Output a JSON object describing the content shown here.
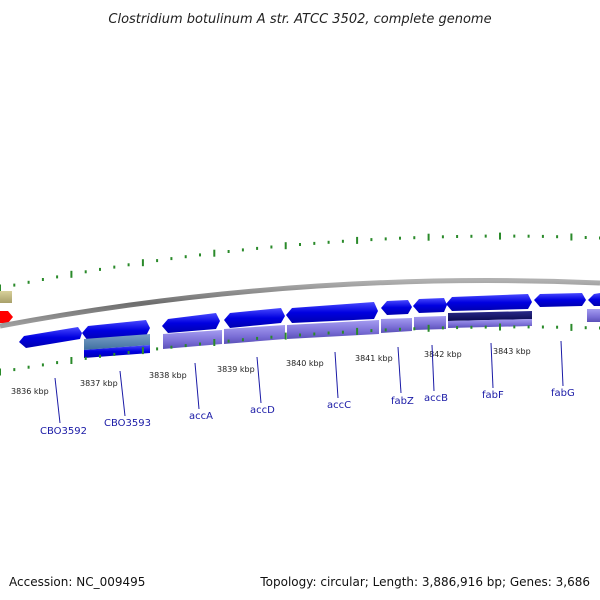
{
  "title": "Clostridium botulinum A str. ATCC 3502, complete genome",
  "footer": {
    "accession": "Accession: NC_009495",
    "summary": "Topology: circular; Length: 3,886,916 bp; Genes: 3,686"
  },
  "scale_labels": [
    "3836 kbp",
    "3837 kbp",
    "3838 kbp",
    "3839 kbp",
    "3840 kbp",
    "3841 kbp",
    "3842 kbp",
    "3843 kbp"
  ],
  "gene_labels": [
    "CBO3592",
    "CBO3593",
    "accA",
    "accD",
    "accC",
    "fabZ",
    "accB",
    "fabF",
    "fabG"
  ],
  "colors": {
    "backbone": "#8a8a8a",
    "gene": "#0a0ae6",
    "cds": "#7b6fd6",
    "tick": "#2a8a2a",
    "label_line": "#1a1aa6",
    "other_feature": "#c8c08a",
    "highlight": "#ff0000"
  }
}
